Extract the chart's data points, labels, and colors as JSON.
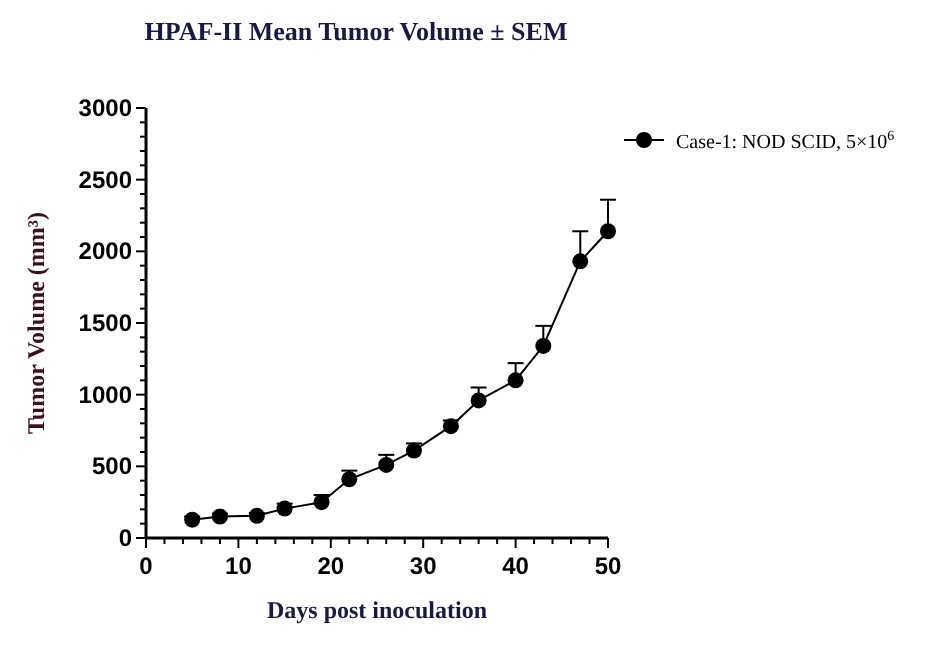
{
  "chart_data": {
    "type": "line",
    "title": "HPAF-II Mean Tumor Volume ± SEM",
    "xlabel": "Days post inoculation",
    "ylabel": "Tumor Volume (mm³)",
    "x": [
      5,
      8,
      12,
      15,
      19,
      22,
      26,
      29,
      33,
      36,
      40,
      43,
      47,
      50
    ],
    "series": [
      {
        "name": "Case-1: NOD SCID, 5×10$^{6}$",
        "color": "#000000",
        "values": [
          128,
          150,
          155,
          205,
          250,
          410,
          510,
          610,
          780,
          960,
          1100,
          1340,
          1930,
          2140
        ],
        "errors": [
          [
            128,
            150
          ],
          [
            150,
            170
          ],
          [
            155,
            175
          ],
          [
            205,
            240
          ],
          [
            250,
            300
          ],
          [
            410,
            470
          ],
          [
            510,
            580
          ],
          [
            610,
            660
          ],
          [
            780,
            820
          ],
          [
            960,
            1050
          ],
          [
            1100,
            1220
          ],
          [
            1340,
            1480
          ],
          [
            1930,
            2140
          ],
          [
            2140,
            2360
          ]
        ]
      }
    ],
    "xlim": [
      0,
      50
    ],
    "xticks": [
      0,
      {
        "value": 2,
        "label": null
      },
      {
        "value": 4,
        "label": null
      },
      {
        "value": 6,
        "label": null
      },
      {
        "value": 8,
        "label": null
      },
      10,
      {
        "value": 12,
        "label": null
      },
      {
        "value": 14,
        "label": null
      },
      {
        "value": 16,
        "label": null
      },
      {
        "value": 18,
        "label": null
      },
      20,
      {
        "value": 22,
        "label": null
      },
      {
        "value": 24,
        "label": null
      },
      {
        "value": 26,
        "label": null
      },
      {
        "value": 28,
        "label": null
      },
      30,
      {
        "value": 32,
        "label": null
      },
      {
        "value": 34,
        "label": null
      },
      {
        "value": 36,
        "label": null
      },
      {
        "value": 38,
        "label": null
      },
      40,
      {
        "value": 42,
        "label": null
      },
      {
        "value": 44,
        "label": null
      },
      {
        "value": 46,
        "label": null
      },
      {
        "value": 48,
        "label": null
      },
      50
    ],
    "ylim": [
      0,
      3000
    ],
    "yticks": [
      0,
      {
        "value": 100,
        "label": null
      },
      {
        "value": 200,
        "label": null
      },
      {
        "value": 300,
        "label": null
      },
      {
        "value": 400,
        "label": null
      },
      500,
      {
        "value": 600,
        "label": null
      },
      {
        "value": 700,
        "label": null
      },
      {
        "value": 800,
        "label": null
      },
      {
        "value": 900,
        "label": null
      },
      1000,
      {
        "value": 1100,
        "label": null
      },
      {
        "value": 1200,
        "label": null
      },
      {
        "value": 1300,
        "label": null
      },
      {
        "value": 1400,
        "label": null
      },
      1500,
      {
        "value": 1600,
        "label": null
      },
      {
        "value": 1700,
        "label": null
      },
      {
        "value": 1800,
        "label": null
      },
      {
        "value": 1900,
        "label": null
      },
      2000,
      {
        "value": 2100,
        "label": null
      },
      {
        "value": 2200,
        "label": null
      },
      {
        "value": 2300,
        "label": null
      },
      {
        "value": 2400,
        "label": null
      },
      2500,
      {
        "value": 2600,
        "label": null
      },
      {
        "value": 2700,
        "label": null
      },
      {
        "value": 2800,
        "label": null
      },
      {
        "value": 2900,
        "label": null
      },
      3000
    ],
    "grid": false,
    "legend": "top right",
    "marker": "circle",
    "line_style": "solid"
  }
}
